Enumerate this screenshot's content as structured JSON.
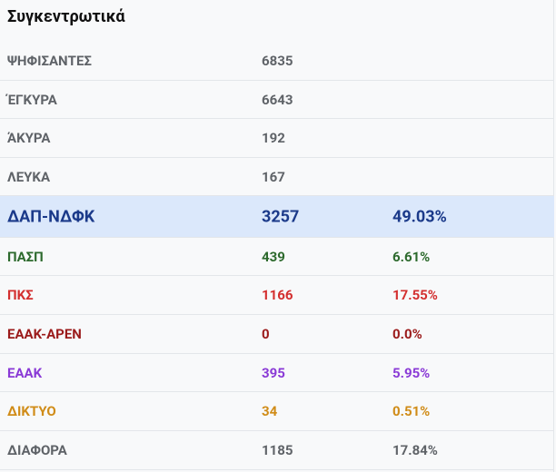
{
  "title": "Συγκεντρωτικά",
  "table": {
    "rows": [
      [
        "ΨΗΦΙΣΑΝΤΕΣ",
        6835
      ],
      [
        "ΈΓΚΥΡΑ",
        6643
      ],
      [
        "ΆΚΥΡΑ",
        192
      ],
      [
        "ΛΕΥΚΑ",
        167
      ],
      [
        "ΔΑΠ-ΝΔΦΚ",
        3257,
        "49.03%"
      ],
      [
        "ΠΑΣΠ",
        439,
        "6.61%"
      ],
      [
        "ΠΚΣ",
        1166,
        "17.55%"
      ],
      [
        "ΕΑΑΚ-ΑΡΕΝ",
        0,
        "0.0%"
      ],
      [
        "ΕΑΑΚ",
        395,
        "5.95%"
      ],
      [
        "ΔΙΚΤΥΟ",
        34,
        "0.51%"
      ],
      [
        "ΔΙΑΦΟΡΑ",
        1185,
        "17.84%"
      ]
    ]
  }
}
